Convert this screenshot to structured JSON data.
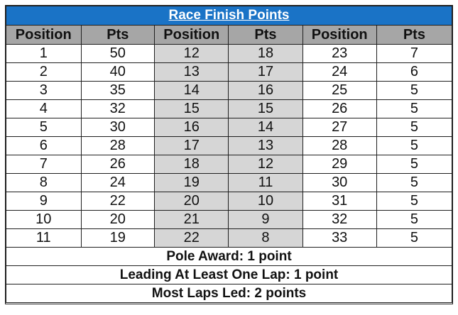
{
  "title": "Race Finish Points",
  "headers": [
    "Position",
    "Pts",
    "Position",
    "Pts",
    "Position",
    "Pts"
  ],
  "rows": [
    [
      "1",
      "50",
      "12",
      "18",
      "23",
      "7"
    ],
    [
      "2",
      "40",
      "13",
      "17",
      "24",
      "6"
    ],
    [
      "3",
      "35",
      "14",
      "16",
      "25",
      "5"
    ],
    [
      "4",
      "32",
      "15",
      "15",
      "26",
      "5"
    ],
    [
      "5",
      "30",
      "16",
      "14",
      "27",
      "5"
    ],
    [
      "6",
      "28",
      "17",
      "13",
      "28",
      "5"
    ],
    [
      "7",
      "26",
      "18",
      "12",
      "29",
      "5"
    ],
    [
      "8",
      "24",
      "19",
      "11",
      "30",
      "5"
    ],
    [
      "9",
      "22",
      "20",
      "10",
      "31",
      "5"
    ],
    [
      "10",
      "20",
      "21",
      "9",
      "32",
      "5"
    ],
    [
      "11",
      "19",
      "22",
      "8",
      "33",
      "5"
    ]
  ],
  "notes": [
    "Pole Award: 1 point",
    "Leading At Least One Lap: 1 point",
    "Most Laps Led: 2 points"
  ],
  "colors": {
    "title_bg": "#1a73c6",
    "header_bg": "#a6a6a6",
    "middle_columns_bg": "#d6d6d6"
  }
}
